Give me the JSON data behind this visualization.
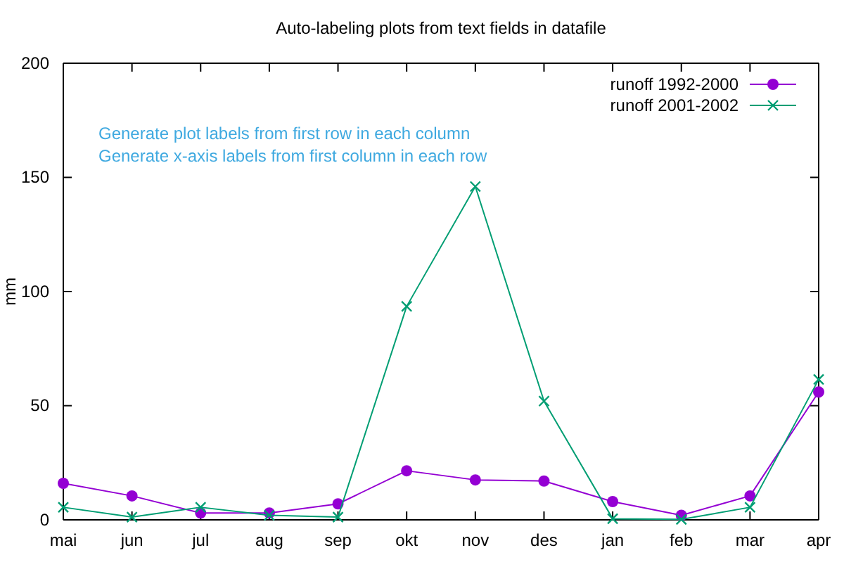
{
  "chart_data": {
    "type": "line",
    "title": "Auto-labeling plots from text fields in datafile",
    "ylabel": "mm",
    "categories": [
      "mai",
      "jun",
      "jul",
      "aug",
      "sep",
      "okt",
      "nov",
      "des",
      "jan",
      "feb",
      "mar",
      "apr"
    ],
    "series": [
      {
        "name": "runoff 1992-2000",
        "color": "#9400d3",
        "marker": "circle",
        "values": [
          16,
          10.5,
          3,
          3,
          7,
          21.5,
          17.5,
          17,
          8,
          2,
          10.5,
          56
        ]
      },
      {
        "name": "runoff 2001-2002",
        "color": "#009e73",
        "marker": "cross",
        "values": [
          5.5,
          1.2,
          5.5,
          2,
          1.2,
          93.5,
          146,
          52,
          0.5,
          0.2,
          5.5,
          61.5
        ]
      }
    ],
    "annotations": [
      "Generate plot labels from first row in each column",
      "Generate x-axis labels from first column in each row"
    ],
    "ylim": [
      0,
      200
    ],
    "yticks": [
      0,
      50,
      100,
      150,
      200
    ],
    "legend": "top right",
    "grid": false
  }
}
